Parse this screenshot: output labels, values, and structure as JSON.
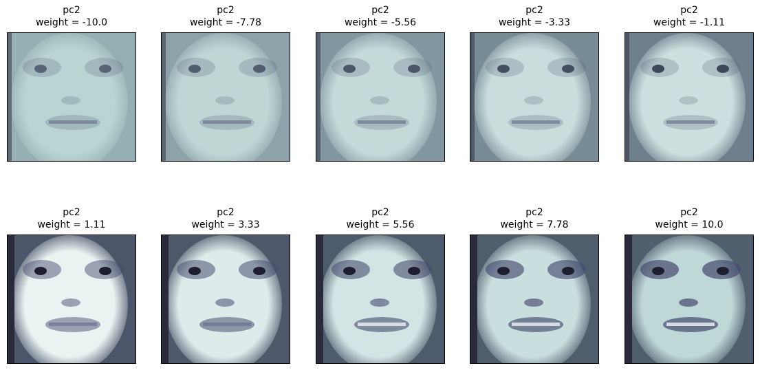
{
  "figure": {
    "colormap": "bone",
    "panels": [
      {
        "title": "pc2",
        "subtitle": "weight = -10.0",
        "weight": -10.0
      },
      {
        "title": "pc2",
        "subtitle": "weight = -7.78",
        "weight": -7.78
      },
      {
        "title": "pc2",
        "subtitle": "weight = -5.56",
        "weight": -5.56
      },
      {
        "title": "pc2",
        "subtitle": "weight = -3.33",
        "weight": -3.33
      },
      {
        "title": "pc2",
        "subtitle": "weight = -1.11",
        "weight": -1.11
      },
      {
        "title": "pc2",
        "subtitle": "weight = 1.11",
        "weight": 1.11
      },
      {
        "title": "pc2",
        "subtitle": "weight = 3.33",
        "weight": 3.33
      },
      {
        "title": "pc2",
        "subtitle": "weight = 5.56",
        "weight": 5.56
      },
      {
        "title": "pc2",
        "subtitle": "weight = 7.78",
        "weight": 7.78
      },
      {
        "title": "pc2",
        "subtitle": "weight = 10.0",
        "weight": 10.0
      }
    ]
  }
}
